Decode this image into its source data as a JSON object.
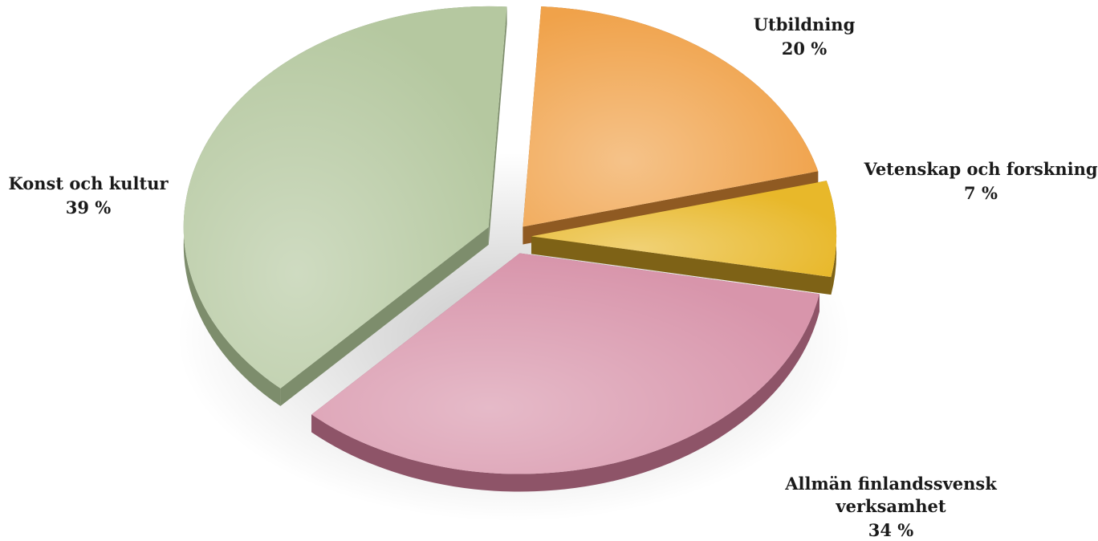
{
  "chart_data": {
    "type": "pie",
    "style": "3d-exploded",
    "title": "",
    "slices": [
      {
        "name": "Utbildning",
        "label_lines": [
          "Utbildning"
        ],
        "value": 20,
        "value_label": "20 %",
        "color": "#f0a24a",
        "side_color": "#8f5a22"
      },
      {
        "name": "Vetenskap och forskning",
        "label_lines": [
          "Vetenskap och forskning"
        ],
        "value": 7,
        "value_label": "7 %",
        "color": "#e8b82a",
        "side_color": "#7e6216"
      },
      {
        "name": "Allmän finlandssvensk verksamhet",
        "label_lines": [
          "Allmän finlandssvensk",
          "verksamhet"
        ],
        "value": 34,
        "value_label": "34 %",
        "color": "#d895ab",
        "side_color": "#8e5468"
      },
      {
        "name": "Konst och kultur",
        "label_lines": [
          "Konst och kultur"
        ],
        "value": 39,
        "value_label": "39 %",
        "color": "#b5c8a0",
        "side_color": "#7d8d6c"
      }
    ]
  }
}
